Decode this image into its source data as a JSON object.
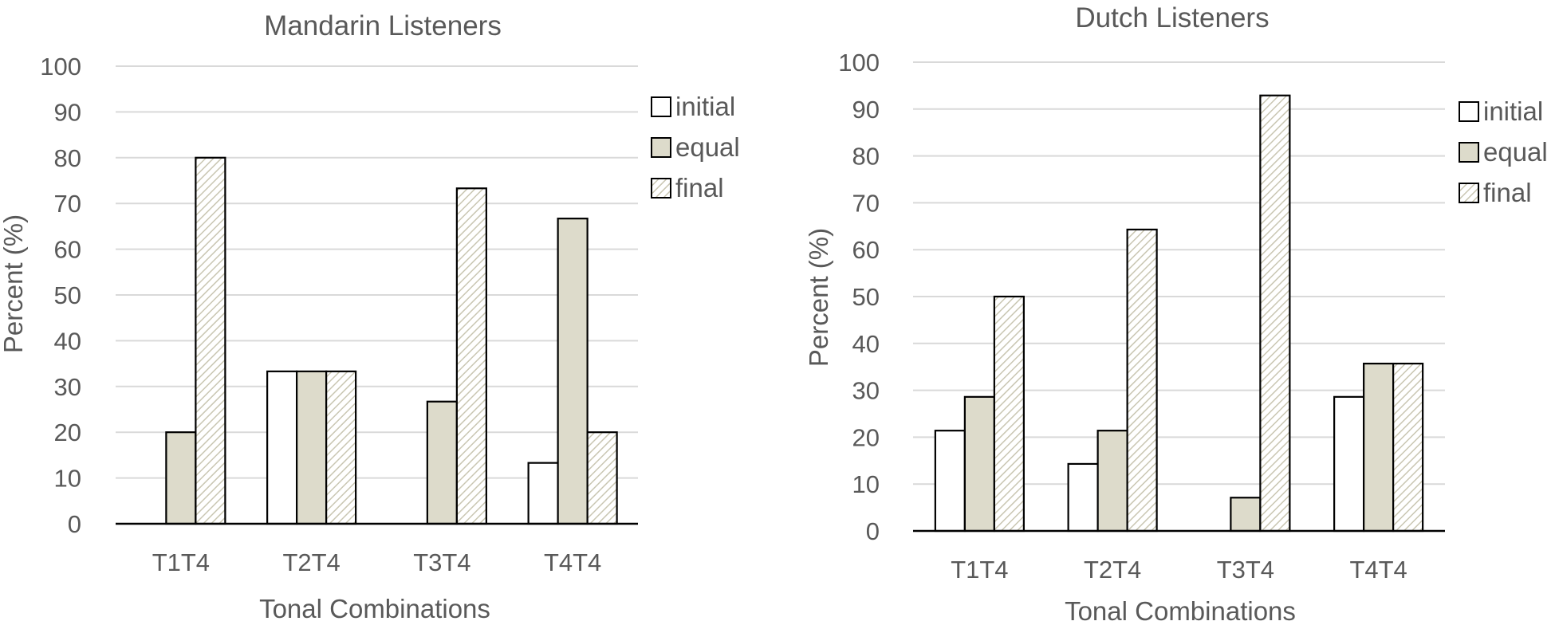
{
  "chart_data": [
    {
      "type": "bar",
      "title": "Mandarin Listeners",
      "xlabel": "Tonal Combinations",
      "ylabel": "Percent (%)",
      "ylim": [
        0,
        100
      ],
      "yticks": [
        "0",
        "10",
        "20",
        "30",
        "40",
        "50",
        "60",
        "70",
        "80",
        "90",
        "100"
      ],
      "grid": true,
      "legend_position": "right",
      "categories": [
        "T1T4",
        "T2T4",
        "T3T4",
        "T4T4"
      ],
      "series": [
        {
          "name": "initial",
          "values": [
            0,
            33.3,
            0,
            13.3
          ]
        },
        {
          "name": "equal",
          "values": [
            20,
            33.3,
            26.7,
            66.7
          ]
        },
        {
          "name": "final",
          "values": [
            80,
            33.3,
            73.3,
            20
          ]
        }
      ]
    },
    {
      "type": "bar",
      "title": "Dutch Listeners",
      "xlabel": "Tonal Combinations",
      "ylabel": "Percent (%)",
      "ylim": [
        0,
        100
      ],
      "yticks": [
        "0",
        "10",
        "20",
        "30",
        "40",
        "50",
        "60",
        "70",
        "80",
        "90",
        "100"
      ],
      "grid": true,
      "legend_position": "right",
      "categories": [
        "T1T4",
        "T2T4",
        "T3T4",
        "T4T4"
      ],
      "series": [
        {
          "name": "initial",
          "values": [
            21.4,
            14.3,
            0,
            28.6
          ]
        },
        {
          "name": "equal",
          "values": [
            28.6,
            21.4,
            7.1,
            35.7
          ]
        },
        {
          "name": "final",
          "values": [
            50,
            64.3,
            92.9,
            35.7
          ]
        }
      ]
    }
  ],
  "styles": {
    "initial_fill": "#ffffff",
    "equal_fill": "#dddbcb",
    "final_fill": "hatch",
    "hatch_color": "#c9c6b2",
    "bar_stroke": "#000000",
    "grid_color": "#d9d9d9",
    "axis_color": "#000000",
    "text_color": "#595959"
  }
}
